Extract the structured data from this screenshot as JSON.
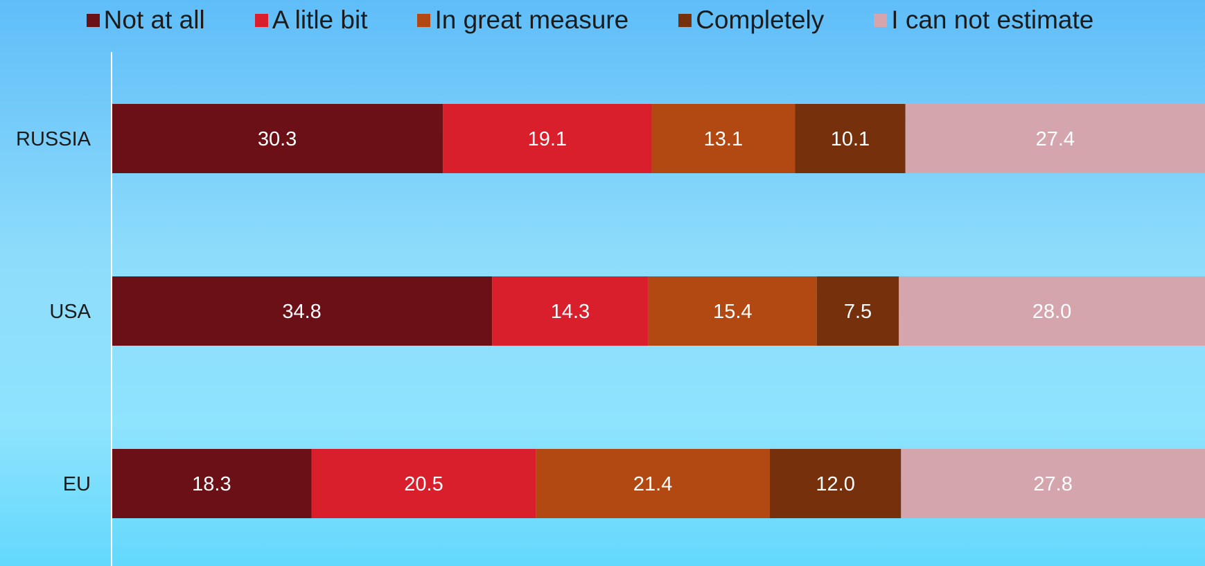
{
  "chart_data": {
    "type": "bar",
    "orientation": "horizontal",
    "stacked": true,
    "categories": [
      "RUSSIA",
      "USA",
      "EU"
    ],
    "series": [
      {
        "name": "Not at all",
        "color": "#6b1016",
        "values": [
          30.3,
          34.8,
          18.3
        ]
      },
      {
        "name": "A litle bit",
        "color": "#d91f2c",
        "values": [
          19.1,
          14.3,
          20.5
        ]
      },
      {
        "name": "In great measure",
        "color": "#b34912",
        "values": [
          13.1,
          15.4,
          21.4
        ]
      },
      {
        "name": "Completely",
        "color": "#76300c",
        "values": [
          10.1,
          7.5,
          12.0
        ]
      },
      {
        "name": "I can not estimate",
        "color": "#d4a5ad",
        "values": [
          27.4,
          28.0,
          27.8
        ]
      }
    ],
    "legend_position": "top",
    "grid": false,
    "xlim": [
      0,
      100
    ],
    "axis_color": "#ffffff"
  }
}
